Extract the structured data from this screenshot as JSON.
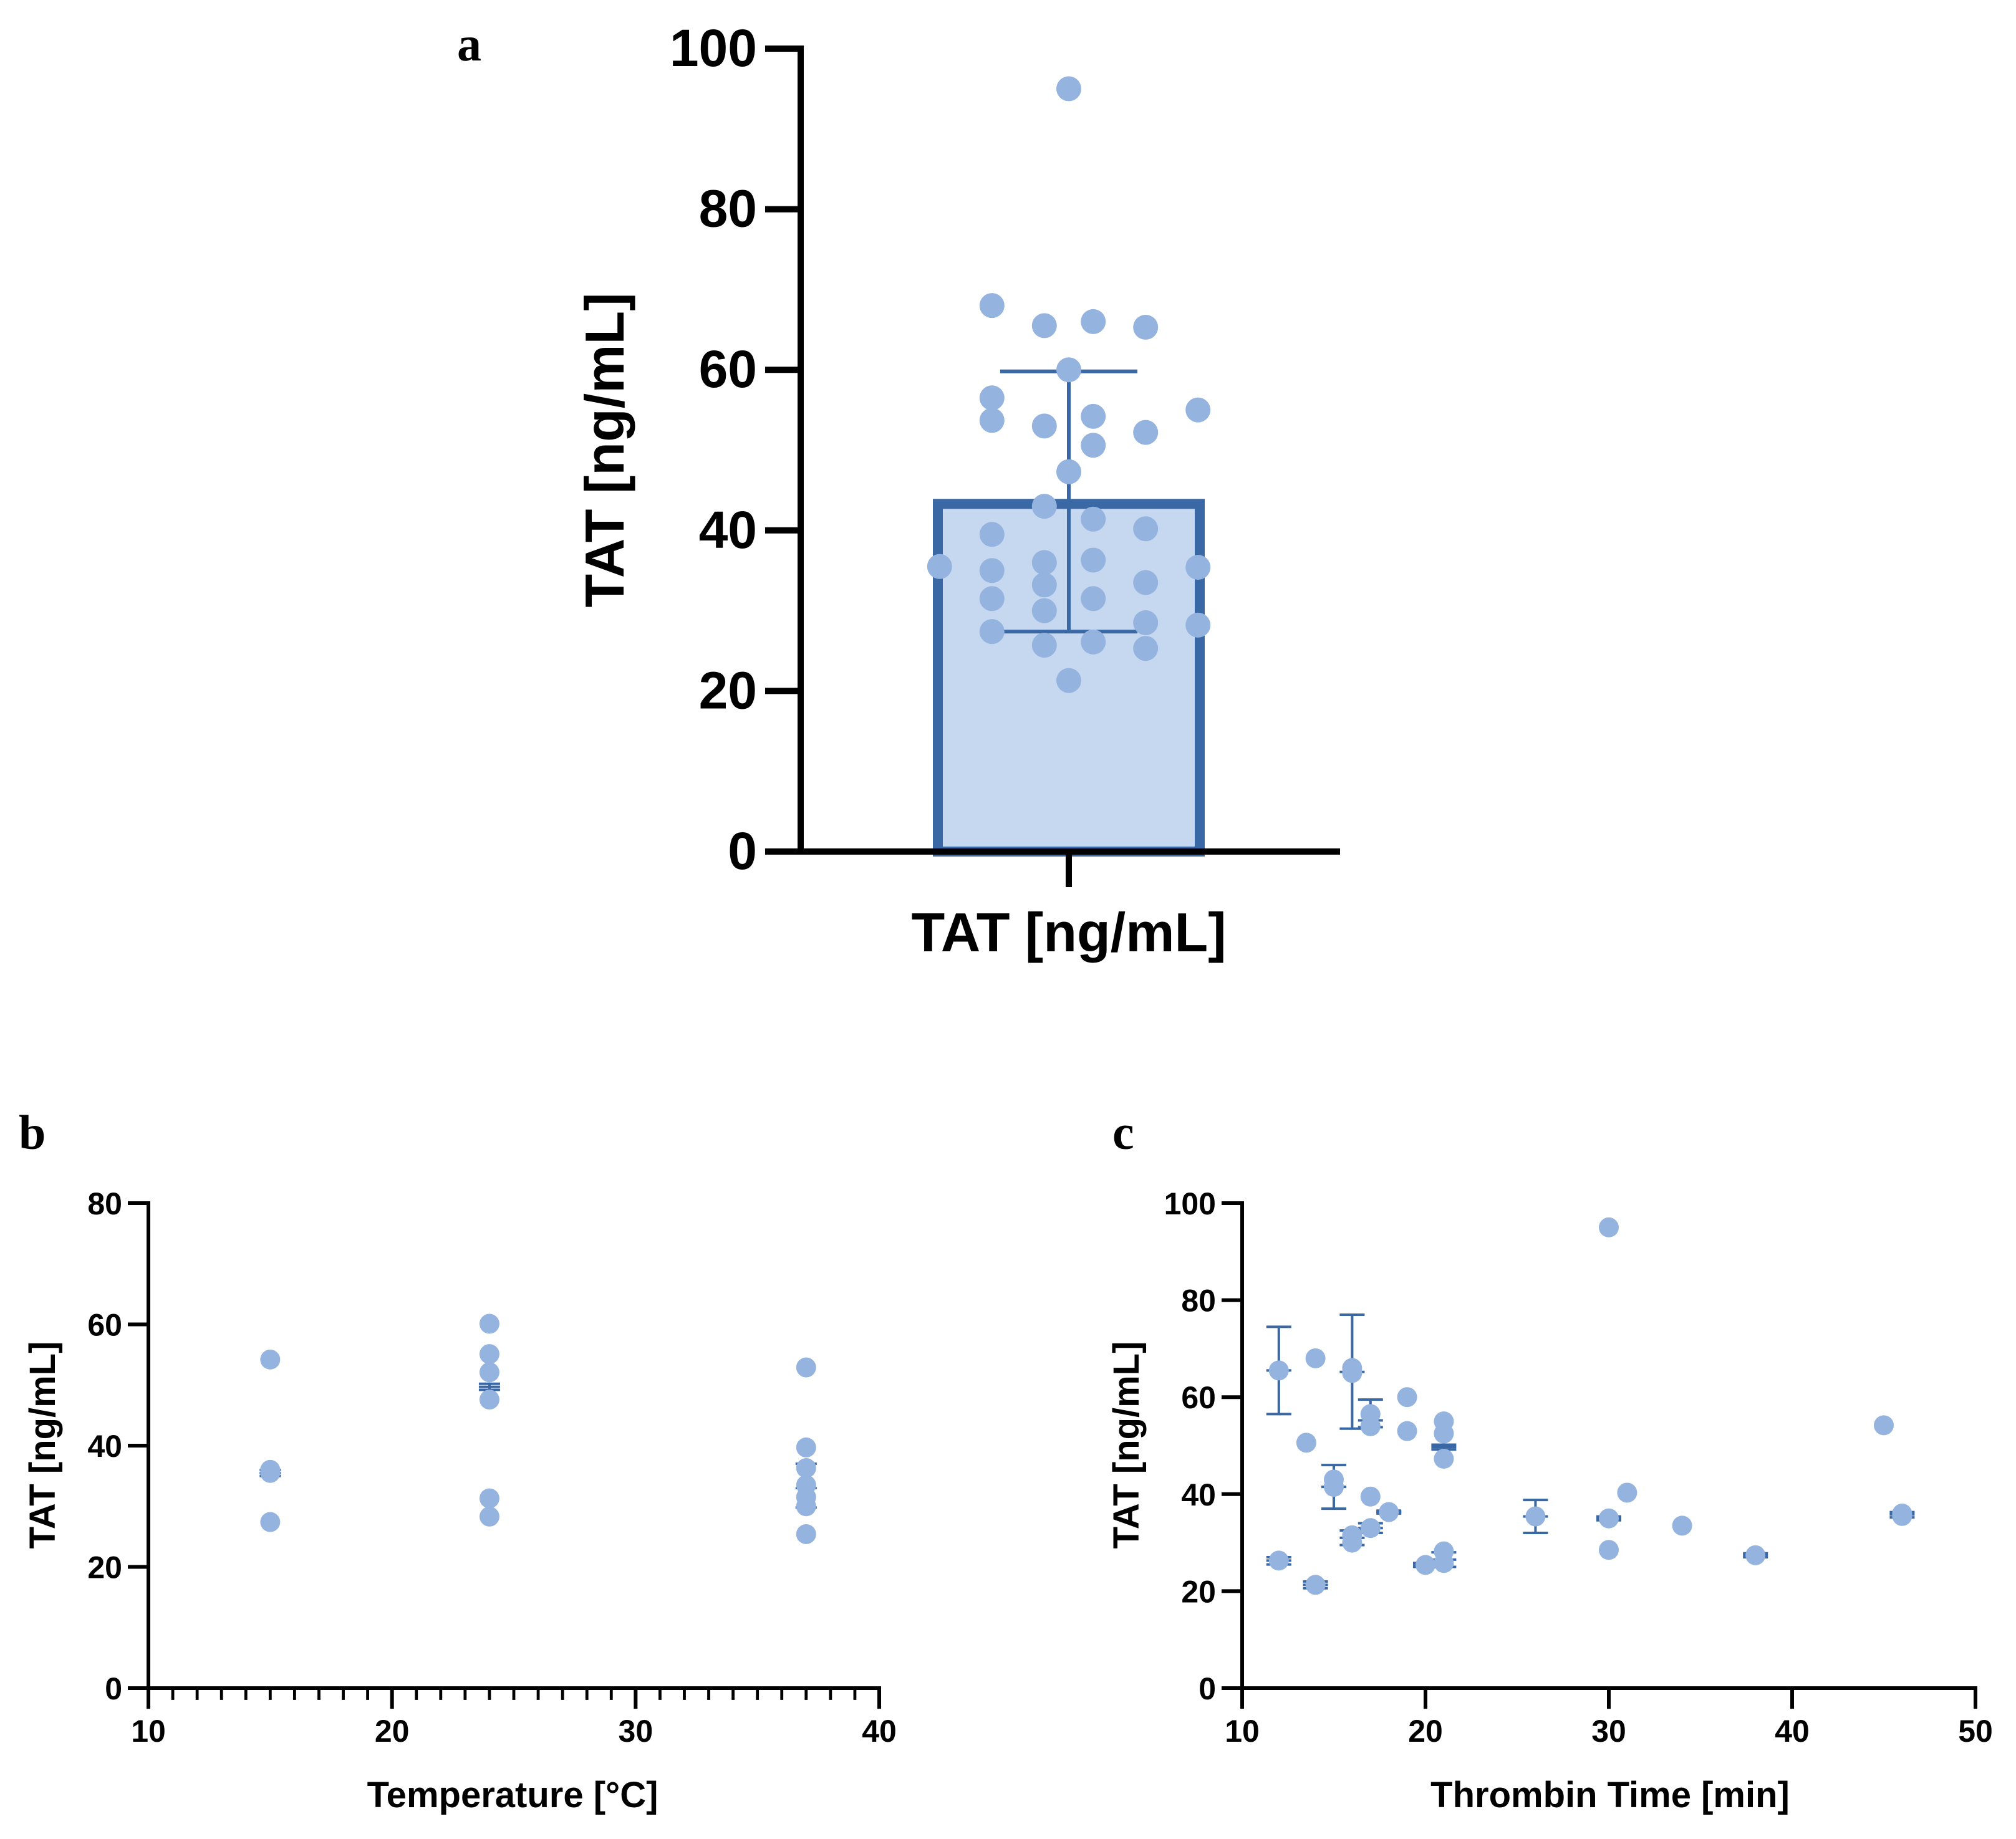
{
  "chart_data": [
    {
      "panel": "a",
      "type": "bar",
      "ylabel": "TAT [ng/mL]",
      "xlabel": "TAT [ng/mL]",
      "categories": [
        "TAT [ng/mL]"
      ],
      "ylim": [
        0,
        100
      ],
      "yticks": [
        0,
        20,
        40,
        60,
        80,
        100
      ],
      "bar": {
        "mean": 43.3,
        "sd_low": 27.4,
        "sd_high": 59.8
      },
      "points": [
        {
          "offset": -0.37,
          "y": 35.5
        },
        {
          "offset": -0.22,
          "y": 68.0
        },
        {
          "offset": -0.22,
          "y": 56.5
        },
        {
          "offset": -0.22,
          "y": 53.7
        },
        {
          "offset": -0.22,
          "y": 39.5
        },
        {
          "offset": -0.22,
          "y": 35.0
        },
        {
          "offset": -0.22,
          "y": 31.5
        },
        {
          "offset": -0.22,
          "y": 27.4
        },
        {
          "offset": -0.07,
          "y": 65.5
        },
        {
          "offset": -0.07,
          "y": 53.0
        },
        {
          "offset": -0.07,
          "y": 43.0
        },
        {
          "offset": -0.07,
          "y": 36.0
        },
        {
          "offset": -0.07,
          "y": 33.2
        },
        {
          "offset": -0.07,
          "y": 30.0
        },
        {
          "offset": -0.07,
          "y": 25.7
        },
        {
          "offset": 0.0,
          "y": 95.0
        },
        {
          "offset": 0.0,
          "y": 60.0
        },
        {
          "offset": 0.0,
          "y": 47.3
        },
        {
          "offset": 0.0,
          "y": 21.3
        },
        {
          "offset": 0.07,
          "y": 66.0
        },
        {
          "offset": 0.07,
          "y": 54.2
        },
        {
          "offset": 0.07,
          "y": 50.6
        },
        {
          "offset": 0.07,
          "y": 41.4
        },
        {
          "offset": 0.07,
          "y": 36.3
        },
        {
          "offset": 0.07,
          "y": 31.5
        },
        {
          "offset": 0.07,
          "y": 26.1
        },
        {
          "offset": 0.22,
          "y": 65.3
        },
        {
          "offset": 0.22,
          "y": 52.2
        },
        {
          "offset": 0.22,
          "y": 40.2
        },
        {
          "offset": 0.22,
          "y": 33.5
        },
        {
          "offset": 0.22,
          "y": 28.5
        },
        {
          "offset": 0.22,
          "y": 25.3
        },
        {
          "offset": 0.37,
          "y": 55.0
        },
        {
          "offset": 0.37,
          "y": 35.4
        },
        {
          "offset": 0.37,
          "y": 28.2
        }
      ]
    },
    {
      "panel": "b",
      "type": "scatter",
      "xlabel": "Temperature [°C]",
      "ylabel": "TAT [ng/mL]",
      "xlim": [
        10,
        40
      ],
      "ylim": [
        0,
        80
      ],
      "xticks": [
        10,
        20,
        30,
        40
      ],
      "yticks": [
        0,
        20,
        40,
        60,
        80
      ],
      "points": [
        {
          "x": 15,
          "y": 54.2
        },
        {
          "x": 15,
          "y": 36.0
        },
        {
          "x": 15,
          "y": 35.5
        },
        {
          "x": 15,
          "y": 27.4
        },
        {
          "x": 24,
          "y": 60.1
        },
        {
          "x": 24,
          "y": 55.1
        },
        {
          "x": 24,
          "y": 52.1
        },
        {
          "x": 24,
          "y": 47.6
        },
        {
          "x": 24,
          "y": 31.3
        },
        {
          "x": 24,
          "y": 28.3
        },
        {
          "x": 37,
          "y": 52.9
        },
        {
          "x": 37,
          "y": 39.7
        },
        {
          "x": 37,
          "y": 36.3
        },
        {
          "x": 37,
          "y": 33.5
        },
        {
          "x": 37,
          "y": 31.5
        },
        {
          "x": 37,
          "y": 30.0
        },
        {
          "x": 37,
          "y": 25.4
        }
      ],
      "errorbars": [
        {
          "x": 15,
          "mean": 35.5,
          "low": 35.0,
          "high": 36.0
        },
        {
          "x": 24,
          "mean": 49.7,
          "low": 49.2,
          "high": 50.2
        },
        {
          "x": 37,
          "mean": 33.0,
          "low": 29.8,
          "high": 37.0
        }
      ]
    },
    {
      "panel": "c",
      "type": "scatter",
      "xlabel": "Thrombin Time [min]",
      "ylabel": "TAT [ng/mL]",
      "xlim": [
        10,
        50
      ],
      "ylim": [
        0,
        100
      ],
      "xticks": [
        10,
        20,
        30,
        40,
        50
      ],
      "yticks": [
        0,
        20,
        40,
        60,
        80,
        100
      ],
      "points": [
        {
          "x": 12,
          "y": 65.5
        },
        {
          "x": 12,
          "y": 26.3
        },
        {
          "x": 13.5,
          "y": 50.6
        },
        {
          "x": 14,
          "y": 68.0
        },
        {
          "x": 14,
          "y": 21.3
        },
        {
          "x": 15,
          "y": 43.0
        },
        {
          "x": 15,
          "y": 41.5
        },
        {
          "x": 16,
          "y": 66.0
        },
        {
          "x": 16,
          "y": 65.0
        },
        {
          "x": 16,
          "y": 31.5
        },
        {
          "x": 16,
          "y": 30.0
        },
        {
          "x": 17,
          "y": 56.5
        },
        {
          "x": 17,
          "y": 54.0
        },
        {
          "x": 17,
          "y": 39.5
        },
        {
          "x": 17,
          "y": 33.0
        },
        {
          "x": 18,
          "y": 36.3
        },
        {
          "x": 19,
          "y": 60.0
        },
        {
          "x": 19,
          "y": 53.0
        },
        {
          "x": 20,
          "y": 25.4
        },
        {
          "x": 21,
          "y": 55.0
        },
        {
          "x": 21,
          "y": 52.5
        },
        {
          "x": 21,
          "y": 47.3
        },
        {
          "x": 21,
          "y": 28.2
        },
        {
          "x": 21,
          "y": 25.8
        },
        {
          "x": 26,
          "y": 35.4
        },
        {
          "x": 30,
          "y": 95.0
        },
        {
          "x": 30,
          "y": 35.0
        },
        {
          "x": 30,
          "y": 28.5
        },
        {
          "x": 31,
          "y": 40.3
        },
        {
          "x": 34,
          "y": 33.5
        },
        {
          "x": 38,
          "y": 27.4
        },
        {
          "x": 45,
          "y": 54.2
        },
        {
          "x": 46,
          "y": 36.0
        },
        {
          "x": 46,
          "y": 35.5
        }
      ],
      "errorbars": [
        {
          "x": 12,
          "mean": 65.5,
          "low": 56.5,
          "high": 74.5
        },
        {
          "x": 12,
          "mean": 26.3,
          "low": 25.5,
          "high": 27.0
        },
        {
          "x": 14,
          "mean": 21.3,
          "low": 20.6,
          "high": 22.0
        },
        {
          "x": 15,
          "mean": 41.5,
          "low": 37.0,
          "high": 46.0
        },
        {
          "x": 16,
          "mean": 65.2,
          "low": 53.5,
          "high": 77.0
        },
        {
          "x": 16,
          "mean": 31.0,
          "low": 29.5,
          "high": 32.5
        },
        {
          "x": 17,
          "mean": 55.2,
          "low": 53.8,
          "high": 59.5
        },
        {
          "x": 17,
          "mean": 33.0,
          "low": 32.0,
          "high": 34.0
        },
        {
          "x": 18,
          "mean": 36.3,
          "low": 36.0,
          "high": 36.6
        },
        {
          "x": 20,
          "mean": 25.4,
          "low": 25.0,
          "high": 25.8
        },
        {
          "x": 21,
          "mean": 49.7,
          "low": 49.2,
          "high": 50.2
        },
        {
          "x": 21,
          "mean": 26.5,
          "low": 25.0,
          "high": 28.0
        },
        {
          "x": 26,
          "mean": 35.4,
          "low": 32.0,
          "high": 38.8
        },
        {
          "x": 30,
          "mean": 35.0,
          "low": 34.6,
          "high": 35.4
        },
        {
          "x": 38,
          "mean": 27.4,
          "low": 27.0,
          "high": 27.8
        },
        {
          "x": 46,
          "mean": 35.8,
          "low": 35.2,
          "high": 36.3
        }
      ]
    }
  ],
  "panels": {
    "a": {
      "letter": "a",
      "ylabel": "TAT [ng/mL]",
      "xlabel": "TAT [ng/mL]"
    },
    "b": {
      "letter": "b",
      "ylabel": "TAT [ng/mL]",
      "xlabel": "Temperature [°C]"
    },
    "c": {
      "letter": "c",
      "ylabel": "TAT [ng/mL]",
      "xlabel": "Thrombin Time [min]"
    }
  },
  "colors": {
    "point": "#94b3df",
    "bar_fill": "#c6d8ef",
    "bar_edge": "#3a68a5",
    "errorbar": "#3a68a5",
    "axis": "#000000"
  }
}
